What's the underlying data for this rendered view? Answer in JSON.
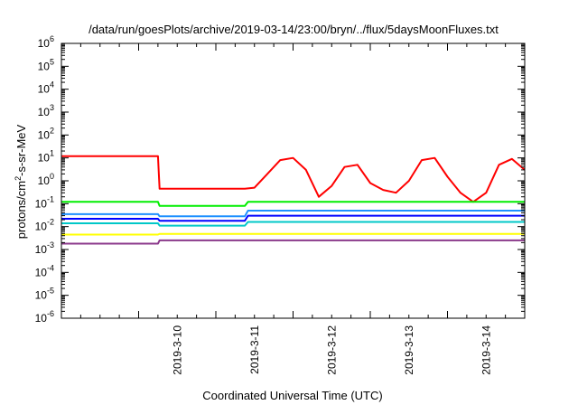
{
  "chart_data": {
    "type": "line",
    "title": "/data/run/goesPlots/archive/2019-03-14/23:00/bryn/../flux/5daysMoonFluxes.txt",
    "xlabel": "Coordinated Universal Time (UTC)",
    "ylabel": {
      "prefix": "protons/cm",
      "sup": "2",
      "suffix": "-s-sr-MeV"
    },
    "yscale": "log",
    "ylim": [
      1e-06,
      1000000.0
    ],
    "xlim": [
      "2019-03-09 00:00",
      "2019-03-15 00:00"
    ],
    "x_ticks": [
      "2019-3-10",
      "2019-3-11",
      "2019-3-12",
      "2019-3-13",
      "2019-3-14"
    ],
    "y_ticks": [
      {
        "base": "10",
        "exp": "-6"
      },
      {
        "base": "10",
        "exp": "-5"
      },
      {
        "base": "10",
        "exp": "-4"
      },
      {
        "base": "10",
        "exp": "-3"
      },
      {
        "base": "10",
        "exp": "-2"
      },
      {
        "base": "10",
        "exp": "-1"
      },
      {
        "base": "10",
        "exp": "0"
      },
      {
        "base": "10",
        "exp": "1"
      },
      {
        "base": "10",
        "exp": "2"
      },
      {
        "base": "10",
        "exp": "3"
      },
      {
        "base": "10",
        "exp": "4"
      },
      {
        "base": "10",
        "exp": "5"
      },
      {
        "base": "10",
        "exp": "6"
      }
    ],
    "grid": false,
    "legend": "none",
    "series": [
      {
        "color": "#ff0000",
        "x": [
          "2019-03-09 00:00",
          "2019-03-10 06:00",
          "2019-03-10 06:30",
          "2019-03-11 09:00",
          "2019-03-11 12:00",
          "2019-03-11 16:00",
          "2019-03-11 20:00",
          "2019-03-12 00:00",
          "2019-03-12 04:00",
          "2019-03-12 08:00",
          "2019-03-12 12:00",
          "2019-03-12 16:00",
          "2019-03-12 20:00",
          "2019-03-13 00:00",
          "2019-03-13 04:00",
          "2019-03-13 08:00",
          "2019-03-13 12:00",
          "2019-03-13 16:00",
          "2019-03-13 20:00",
          "2019-03-14 00:00",
          "2019-03-14 04:00",
          "2019-03-14 08:00",
          "2019-03-14 12:00",
          "2019-03-14 16:00",
          "2019-03-14 20:00",
          "2019-03-15 00:00"
        ],
        "y": [
          12,
          12,
          0.45,
          0.45,
          0.5,
          2,
          8,
          10,
          3,
          0.2,
          0.6,
          4,
          5,
          0.8,
          0.4,
          0.3,
          1,
          8,
          10,
          1.5,
          0.3,
          0.12,
          0.3,
          5,
          9,
          3
        ]
      },
      {
        "color": "#00ee00",
        "x": [
          "2019-03-09 00:00",
          "2019-03-10 06:00",
          "2019-03-10 06:30",
          "2019-03-11 09:00",
          "2019-03-11 10:00",
          "2019-03-15 00:00"
        ],
        "y": [
          0.12,
          0.12,
          0.08,
          0.08,
          0.12,
          0.12
        ]
      },
      {
        "color": "#1e90ff",
        "x": [
          "2019-03-09 00:00",
          "2019-03-10 06:00",
          "2019-03-10 06:30",
          "2019-03-11 09:00",
          "2019-03-11 10:00",
          "2019-03-15 00:00"
        ],
        "y": [
          0.035,
          0.035,
          0.028,
          0.028,
          0.05,
          0.05
        ]
      },
      {
        "color": "#0000ff",
        "x": [
          "2019-03-09 00:00",
          "2019-03-10 06:00",
          "2019-03-10 06:30",
          "2019-03-11 09:00",
          "2019-03-11 10:00",
          "2019-03-15 00:00"
        ],
        "y": [
          0.022,
          0.022,
          0.018,
          0.018,
          0.03,
          0.03
        ]
      },
      {
        "color": "#00c8c8",
        "x": [
          "2019-03-09 00:00",
          "2019-03-10 06:00",
          "2019-03-10 06:30",
          "2019-03-11 09:00",
          "2019-03-11 10:00",
          "2019-03-15 00:00"
        ],
        "y": [
          0.014,
          0.014,
          0.011,
          0.011,
          0.016,
          0.016
        ]
      },
      {
        "color": "#ffff00",
        "x": [
          "2019-03-09 00:00",
          "2019-03-10 06:00",
          "2019-03-10 06:30",
          "2019-03-15 00:00"
        ],
        "y": [
          0.0045,
          0.0045,
          0.0048,
          0.0048
        ]
      },
      {
        "color": "#8b3a8b",
        "x": [
          "2019-03-09 00:00",
          "2019-03-10 06:00",
          "2019-03-10 06:30",
          "2019-03-15 00:00"
        ],
        "y": [
          0.0018,
          0.0018,
          0.0025,
          0.0025
        ]
      }
    ]
  }
}
